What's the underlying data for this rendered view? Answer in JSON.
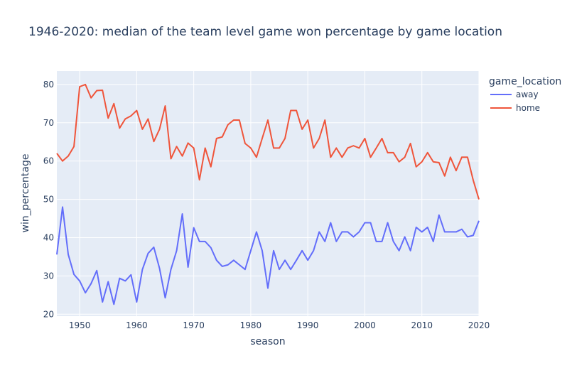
{
  "chart_data": {
    "type": "line",
    "title": "1946-2020: median of the team level game won percentage by game location",
    "xlabel": "season",
    "ylabel": "win_percentage",
    "xlim": [
      1946,
      2020
    ],
    "ylim": [
      19.5,
      83.5
    ],
    "xticks": [
      1950,
      1960,
      1970,
      1980,
      1990,
      2000,
      2010,
      2020
    ],
    "yticks": [
      20,
      30,
      40,
      50,
      60,
      70,
      80
    ],
    "grid": true,
    "legend": {
      "title": "game_location",
      "position": "right"
    },
    "x": [
      1946,
      1947,
      1948,
      1949,
      1950,
      1951,
      1952,
      1953,
      1954,
      1955,
      1956,
      1957,
      1958,
      1959,
      1960,
      1961,
      1962,
      1963,
      1964,
      1965,
      1966,
      1967,
      1968,
      1969,
      1970,
      1971,
      1972,
      1973,
      1974,
      1975,
      1976,
      1977,
      1978,
      1979,
      1980,
      1981,
      1982,
      1983,
      1984,
      1985,
      1986,
      1987,
      1988,
      1989,
      1990,
      1991,
      1992,
      1993,
      1994,
      1995,
      1996,
      1997,
      1998,
      1999,
      2000,
      2001,
      2002,
      2003,
      2004,
      2005,
      2006,
      2007,
      2008,
      2009,
      2010,
      2011,
      2012,
      2013,
      2014,
      2015,
      2016,
      2017,
      2018,
      2019,
      2020
    ],
    "series": [
      {
        "name": "away",
        "color": "#636efa",
        "values": [
          35.6,
          48.0,
          35.6,
          30.4,
          28.7,
          25.6,
          28.0,
          31.4,
          23.2,
          28.5,
          22.6,
          29.4,
          28.7,
          30.3,
          23.2,
          31.7,
          35.9,
          37.5,
          32.0,
          24.3,
          31.7,
          36.6,
          46.2,
          32.3,
          42.6,
          39.0,
          39.0,
          37.4,
          34.1,
          32.5,
          32.9,
          34.1,
          32.9,
          31.7,
          36.6,
          41.5,
          36.6,
          26.8,
          36.6,
          31.7,
          34.1,
          31.7,
          34.1,
          36.6,
          34.1,
          36.6,
          41.5,
          39.0,
          43.9,
          39.0,
          41.5,
          41.5,
          40.2,
          41.5,
          43.9,
          43.9,
          39.0,
          39.0,
          43.9,
          39.0,
          36.6,
          40.2,
          36.6,
          42.7,
          41.5,
          42.7,
          39.0,
          45.9,
          41.5,
          41.5,
          41.5,
          42.2,
          40.2,
          40.6,
          44.4
        ]
      },
      {
        "name": "home",
        "color": "#ef553b",
        "values": [
          62.0,
          60.0,
          61.3,
          63.8,
          79.4,
          80.0,
          76.5,
          78.4,
          78.5,
          71.2,
          75.0,
          68.6,
          71.0,
          71.8,
          73.2,
          68.3,
          71.0,
          65.1,
          68.3,
          74.4,
          60.6,
          63.8,
          61.3,
          64.7,
          63.4,
          55.1,
          63.4,
          58.5,
          65.9,
          66.3,
          69.5,
          70.7,
          70.7,
          64.6,
          63.4,
          61.0,
          65.9,
          70.7,
          63.4,
          63.4,
          65.9,
          73.2,
          73.2,
          68.3,
          70.7,
          63.4,
          65.9,
          70.7,
          61.0,
          63.4,
          61.0,
          63.4,
          64.0,
          63.4,
          65.9,
          61.0,
          63.4,
          65.9,
          62.2,
          62.2,
          59.8,
          61.0,
          64.6,
          58.5,
          59.8,
          62.2,
          59.8,
          59.6,
          56.1,
          61.0,
          57.5,
          61.0,
          61.0,
          55.0,
          50.0
        ]
      }
    ]
  }
}
